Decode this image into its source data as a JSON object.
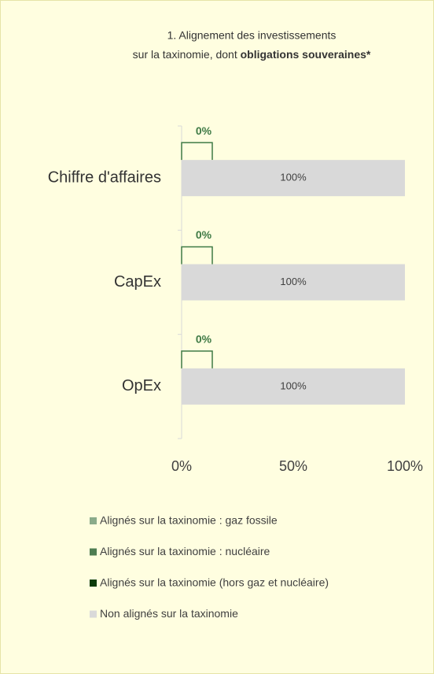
{
  "chart_data": {
    "type": "stacked-horizontal-bar",
    "title": "1. Alignement des investissements",
    "subtitle": "sur la taxinomie, dont ",
    "subtitle_bold": "obligations souveraines*",
    "categories": [
      "Chiffre d'affaires",
      "CapEx",
      "OpEx"
    ],
    "series": [
      {
        "name": "Alignés sur la taxinomie : gaz fossile",
        "color": "#8aab8a",
        "values": [
          0,
          0,
          0
        ]
      },
      {
        "name": "Alignés sur la taxinomie : nucléaire",
        "color": "#4e7d52",
        "values": [
          0,
          0,
          0
        ]
      },
      {
        "name": "Alignés sur la taxinomie (hors gaz et nucléaire)",
        "color": "#0b3b0b",
        "values": [
          0,
          0,
          0
        ],
        "value_labels": [
          "0%",
          "0%",
          "0%"
        ]
      },
      {
        "name": "Non alignés sur la taxinomie",
        "color": "#d9d9d9",
        "values": [
          100,
          100,
          100
        ],
        "value_labels": [
          "100%",
          "100%",
          "100%"
        ]
      }
    ],
    "xlim": [
      0,
      100
    ],
    "xticks": [
      {
        "value": 0,
        "label": "0%"
      },
      {
        "value": 50,
        "label": "50%"
      },
      {
        "value": 100,
        "label": "100%"
      }
    ],
    "grid": false,
    "legend": "bottom"
  }
}
